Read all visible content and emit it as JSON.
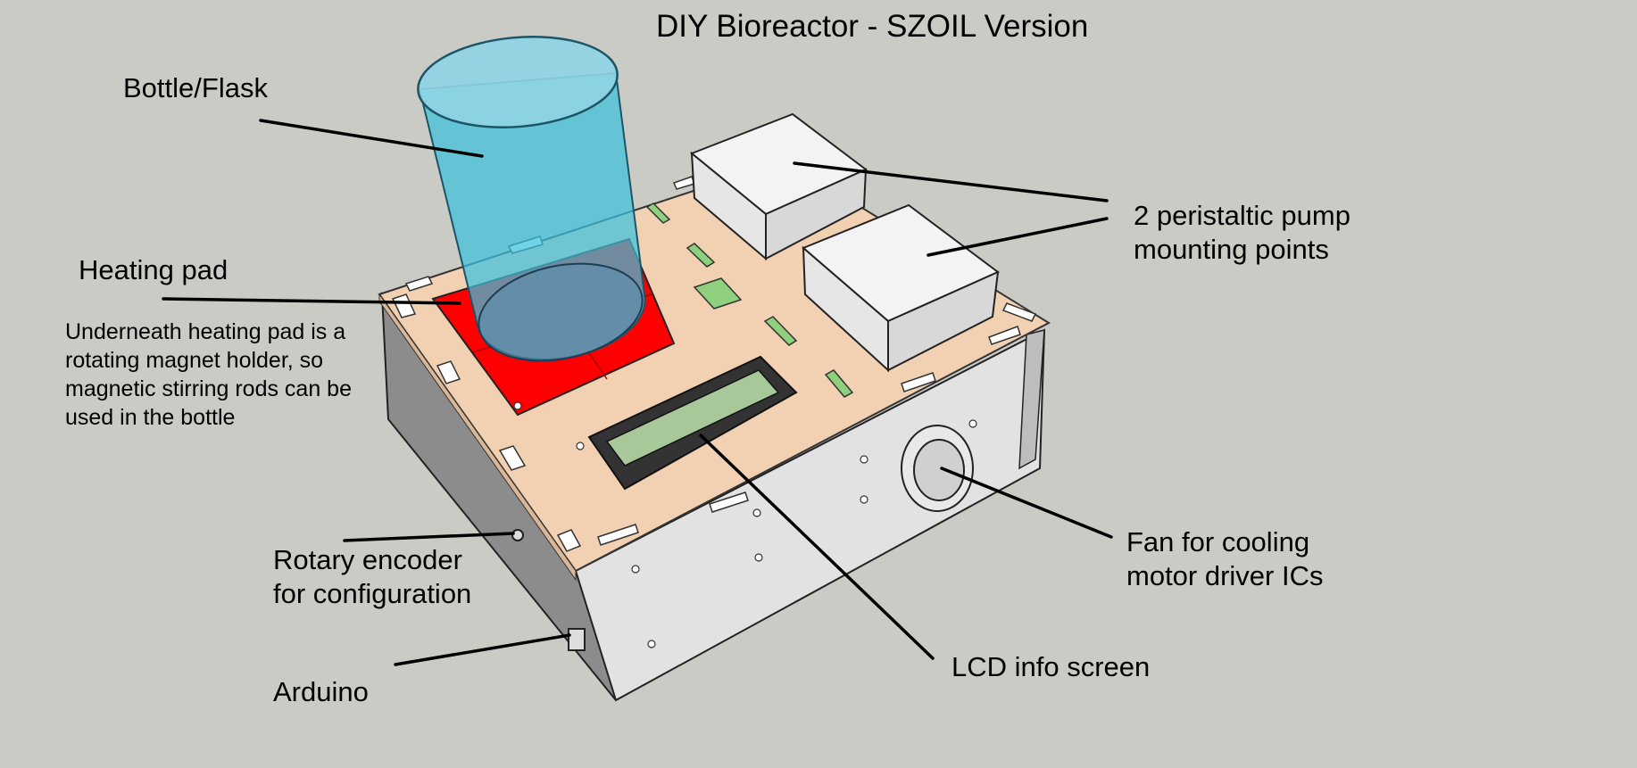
{
  "title": "DIY Bioreactor - SZOIL Version",
  "labels": {
    "bottle": "Bottle/Flask",
    "heating_pad": "Heating pad",
    "heating_note": "Underneath heating pad is a\nrotating magnet holder, so\nmagnetic stirring rods can be\nused in the bottle",
    "pumps": "2 peristaltic pump\nmounting points",
    "encoder": "Rotary encoder\nfor configuration",
    "arduino": "Arduino",
    "fan": "Fan for cooling\nmotor driver ICs",
    "lcd": "LCD info screen"
  },
  "colors": {
    "background": "#cbcbc6",
    "top_panel": "#f2d0b2",
    "heating_pad": "#ff0000",
    "bottle": "#3cc0dc",
    "lcd_screen": "#a8c89a",
    "box_side": "#e2e2e2",
    "pump_box": "#f3f3f3"
  }
}
